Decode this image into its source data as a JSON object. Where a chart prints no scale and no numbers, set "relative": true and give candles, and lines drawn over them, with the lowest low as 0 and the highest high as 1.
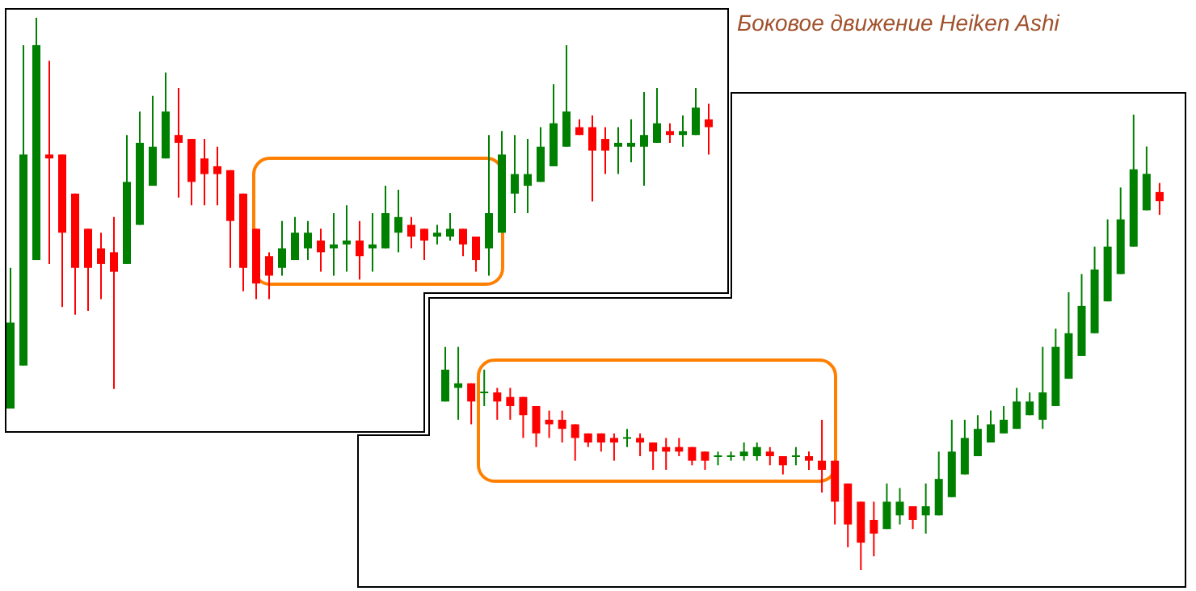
{
  "chart_data": [
    {
      "type": "candlestick",
      "relative": true,
      "tick_labels": false,
      "categories": [
        null,
        null,
        null,
        null,
        null,
        null,
        null,
        null,
        null,
        null,
        null,
        null,
        null,
        null,
        null,
        null,
        null,
        null,
        null,
        null,
        null,
        null,
        null,
        null,
        null,
        null,
        null,
        null,
        null,
        null,
        null,
        null,
        null,
        null,
        null,
        null,
        null,
        null,
        null,
        null,
        null,
        null,
        null,
        null,
        null,
        null,
        null,
        null,
        null,
        null,
        null,
        null,
        null,
        null,
        null
      ],
      "ohlc": [
        [
          0,
          0.36,
          0,
          0.22
        ],
        [
          0.11,
          0.93,
          0.11,
          0.65
        ],
        [
          0.38,
          1,
          0.38,
          0.93
        ],
        [
          0.65,
          0.89,
          0.37,
          0.64
        ],
        [
          0.65,
          0.65,
          0.26,
          0.45
        ],
        [
          0.55,
          0.55,
          0.24,
          0.36
        ],
        [
          0.46,
          0.46,
          0.25,
          0.36
        ],
        [
          0.41,
          0.45,
          0.28,
          0.37
        ],
        [
          0.4,
          0.49,
          0.05,
          0.35
        ],
        [
          0.37,
          0.7,
          0.37,
          0.58
        ],
        [
          0.47,
          0.76,
          0.47,
          0.68
        ],
        [
          0.57,
          0.8,
          0.57,
          0.67
        ],
        [
          0.64,
          0.86,
          0.64,
          0.76
        ],
        [
          0.7,
          0.82,
          0.54,
          0.68
        ],
        [
          0.69,
          0.69,
          0.52,
          0.58
        ],
        [
          0.64,
          0.69,
          0.52,
          0.6
        ],
        [
          0.62,
          0.67,
          0.52,
          0.6
        ],
        [
          0.61,
          0.61,
          0.36,
          0.48
        ],
        [
          0.55,
          0.55,
          0.3,
          0.36
        ],
        [
          0.46,
          0.46,
          0.28,
          0.32
        ],
        [
          0.39,
          0.4,
          0.28,
          0.34
        ],
        [
          0.36,
          0.48,
          0.34,
          0.41
        ],
        [
          0.38,
          0.49,
          0.38,
          0.45
        ],
        [
          0.41,
          0.48,
          0.38,
          0.45
        ],
        [
          0.43,
          0.46,
          0.35,
          0.4
        ],
        [
          0.41,
          0.5,
          0.34,
          0.42
        ],
        [
          0.42,
          0.52,
          0.35,
          0.43
        ],
        [
          0.43,
          0.48,
          0.33,
          0.39
        ],
        [
          0.41,
          0.5,
          0.35,
          0.42
        ],
        [
          0.41,
          0.57,
          0.41,
          0.5
        ],
        [
          0.45,
          0.56,
          0.4,
          0.49
        ],
        [
          0.47,
          0.49,
          0.41,
          0.44
        ],
        [
          0.46,
          0.46,
          0.38,
          0.43
        ],
        [
          0.44,
          0.47,
          0.42,
          0.45
        ],
        [
          0.44,
          0.5,
          0.43,
          0.46
        ],
        [
          0.46,
          0.46,
          0.39,
          0.42
        ],
        [
          0.44,
          0.44,
          0.35,
          0.38
        ],
        [
          0.41,
          0.7,
          0.34,
          0.5
        ],
        [
          0.45,
          0.71,
          0.45,
          0.65
        ],
        [
          0.55,
          0.7,
          0.5,
          0.6
        ],
        [
          0.57,
          0.69,
          0.5,
          0.6
        ],
        [
          0.58,
          0.72,
          0.58,
          0.67
        ],
        [
          0.62,
          0.83,
          0.62,
          0.73
        ],
        [
          0.67,
          0.93,
          0.67,
          0.76
        ],
        [
          0.72,
          0.74,
          0.7,
          0.7
        ],
        [
          0.72,
          0.75,
          0.53,
          0.66
        ],
        [
          0.69,
          0.72,
          0.6,
          0.66
        ],
        [
          0.67,
          0.72,
          0.6,
          0.68
        ],
        [
          0.67,
          0.74,
          0.63,
          0.68
        ],
        [
          0.67,
          0.81,
          0.57,
          0.7
        ],
        [
          0.68,
          0.82,
          0.68,
          0.73
        ],
        [
          0.71,
          0.73,
          0.68,
          0.7
        ],
        [
          0.7,
          0.75,
          0.67,
          0.71
        ],
        [
          0.7,
          0.82,
          0.7,
          0.77
        ],
        [
          0.74,
          0.78,
          0.65,
          0.72
        ]
      ]
    },
    {
      "type": "candlestick",
      "title": "Боковое движение Heiken Ashi",
      "relative": true,
      "tick_labels": false,
      "categories": [
        null,
        null,
        null,
        null,
        null,
        null,
        null,
        null,
        null,
        null,
        null,
        null,
        null,
        null,
        null,
        null,
        null,
        null,
        null,
        null,
        null,
        null,
        null,
        null,
        null,
        null,
        null,
        null,
        null,
        null,
        null,
        null,
        null,
        null,
        null,
        null,
        null,
        null,
        null,
        null,
        null,
        null,
        null,
        null,
        null,
        null,
        null,
        null,
        null,
        null,
        null,
        null,
        null,
        null,
        null,
        null
      ],
      "ohlc": [
        [
          0.37,
          0.49,
          0.37,
          0.44
        ],
        [
          0.4,
          0.49,
          0.33,
          0.41
        ],
        [
          0.41,
          0.41,
          0.32,
          0.37
        ],
        [
          0.39,
          0.44,
          0.36,
          0.39
        ],
        [
          0.39,
          0.4,
          0.33,
          0.37
        ],
        [
          0.38,
          0.4,
          0.33,
          0.36
        ],
        [
          0.38,
          0.38,
          0.29,
          0.34
        ],
        [
          0.36,
          0.36,
          0.27,
          0.3
        ],
        [
          0.33,
          0.35,
          0.29,
          0.32
        ],
        [
          0.33,
          0.35,
          0.28,
          0.31
        ],
        [
          0.32,
          0.32,
          0.24,
          0.29
        ],
        [
          0.3,
          0.3,
          0.27,
          0.28
        ],
        [
          0.3,
          0.3,
          0.26,
          0.28
        ],
        [
          0.29,
          0.3,
          0.24,
          0.28
        ],
        [
          0.29,
          0.31,
          0.27,
          0.29
        ],
        [
          0.29,
          0.3,
          0.25,
          0.28
        ],
        [
          0.28,
          0.28,
          0.22,
          0.26
        ],
        [
          0.27,
          0.29,
          0.22,
          0.26
        ],
        [
          0.27,
          0.29,
          0.25,
          0.26
        ],
        [
          0.27,
          0.27,
          0.23,
          0.24
        ],
        [
          0.26,
          0.26,
          0.22,
          0.24
        ],
        [
          0.25,
          0.26,
          0.23,
          0.25
        ],
        [
          0.25,
          0.26,
          0.24,
          0.25
        ],
        [
          0.25,
          0.28,
          0.24,
          0.26
        ],
        [
          0.25,
          0.28,
          0.24,
          0.27
        ],
        [
          0.26,
          0.27,
          0.23,
          0.25
        ],
        [
          0.25,
          0.25,
          0.21,
          0.23
        ],
        [
          0.25,
          0.27,
          0.23,
          0.25
        ],
        [
          0.25,
          0.26,
          0.22,
          0.24
        ],
        [
          0.24,
          0.33,
          0.17,
          0.22
        ],
        [
          0.24,
          0.24,
          0.1,
          0.15
        ],
        [
          0.19,
          0.19,
          0.05,
          0.1
        ],
        [
          0.15,
          0.15,
          0,
          0.06
        ],
        [
          0.11,
          0.15,
          0.03,
          0.08
        ],
        [
          0.09,
          0.19,
          0.09,
          0.15
        ],
        [
          0.12,
          0.18,
          0.1,
          0.15
        ],
        [
          0.14,
          0.14,
          0.09,
          0.11
        ],
        [
          0.12,
          0.19,
          0.08,
          0.14
        ],
        [
          0.12,
          0.26,
          0.12,
          0.2
        ],
        [
          0.16,
          0.33,
          0.16,
          0.26
        ],
        [
          0.21,
          0.33,
          0.21,
          0.29
        ],
        [
          0.25,
          0.34,
          0.25,
          0.31
        ],
        [
          0.28,
          0.35,
          0.28,
          0.32
        ],
        [
          0.3,
          0.36,
          0.3,
          0.33
        ],
        [
          0.31,
          0.4,
          0.31,
          0.37
        ],
        [
          0.34,
          0.39,
          0.34,
          0.37
        ],
        [
          0.33,
          0.49,
          0.31,
          0.39
        ],
        [
          0.36,
          0.53,
          0.36,
          0.49
        ],
        [
          0.42,
          0.61,
          0.42,
          0.52
        ],
        [
          0.47,
          0.65,
          0.47,
          0.58
        ],
        [
          0.52,
          0.71,
          0.52,
          0.66
        ],
        [
          0.59,
          0.77,
          0.59,
          0.71
        ],
        [
          0.65,
          0.84,
          0.65,
          0.77
        ],
        [
          0.71,
          1,
          0.71,
          0.88
        ],
        [
          0.79,
          0.93,
          0.79,
          0.87
        ],
        [
          0.83,
          0.85,
          0.78,
          0.81
        ]
      ]
    }
  ]
}
